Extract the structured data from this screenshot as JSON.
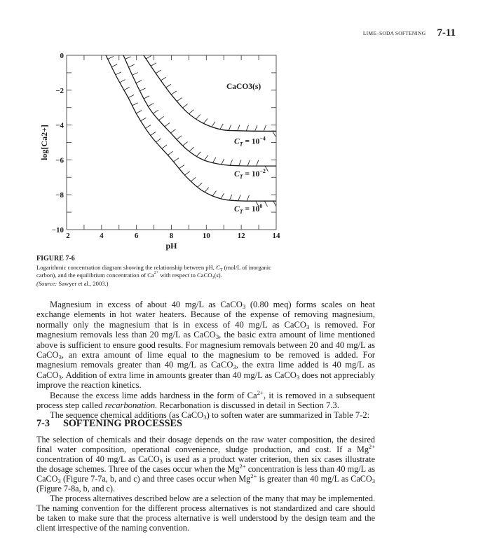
{
  "header": {
    "running_title": "LIME–SODA SOFTENING",
    "page_number": "7-11"
  },
  "chart_data": {
    "type": "line",
    "xlabel": "pH",
    "ylabel": "log[Ca2+]",
    "xlim": [
      2,
      14
    ],
    "ylim": [
      -10,
      0
    ],
    "xticks": [
      "2",
      "4",
      "6",
      "8",
      "10",
      "12",
      "14"
    ],
    "yticks": [
      "0",
      "−2",
      "−4",
      "−6",
      "−8",
      "−10"
    ],
    "region_label": "CaCO3(s)",
    "grid": false,
    "series": [
      {
        "name": "CT = 10^-4",
        "label_base": "C",
        "label_sub": "T",
        "label_mid": " = 10",
        "label_exp": "−4",
        "x": [
          6.41,
          7.15,
          7.95,
          8.88,
          9.82,
          10.9,
          11.96,
          13.0,
          14.0
        ],
        "y": [
          0,
          -1.1,
          -2.2,
          -3.25,
          -3.9,
          -4.27,
          -4.33,
          -4.35,
          -4.35
        ]
      },
      {
        "name": "CT = 10^-2",
        "label_base": "C",
        "label_sub": "T",
        "label_mid": " = 10",
        "label_exp": "−2",
        "x": [
          5.25,
          5.81,
          6.48,
          7.0,
          7.95,
          8.88,
          9.82,
          10.9,
          11.96,
          13.0,
          14.0
        ],
        "y": [
          0,
          -1.25,
          -2.6,
          -3.4,
          -4.45,
          -5.4,
          -6.0,
          -6.27,
          -6.34,
          -6.35,
          -6.35
        ]
      },
      {
        "name": "CT = 10^0",
        "label_base": "C",
        "label_sub": "T",
        "label_mid": " = 10",
        "label_exp": "0",
        "x": [
          4.25,
          4.87,
          5.54,
          6.08,
          6.88,
          7.95,
          8.88,
          9.82,
          10.9,
          11.96,
          13.0,
          14.0
        ],
        "y": [
          0,
          -1.25,
          -2.45,
          -3.5,
          -4.7,
          -5.9,
          -7.0,
          -7.8,
          -8.25,
          -8.35,
          -8.36,
          -8.36
        ]
      }
    ],
    "colors": {
      "line": "#1a1a1a"
    }
  },
  "caption": {
    "figure_label": "FIGURE 7-6",
    "segments": [
      {
        "t": "Logarithmic concentration diagram showing the relationship between pH, "
      },
      {
        "t": "C",
        "i": true
      },
      {
        "t": "T",
        "sub": true
      },
      {
        "t": " (mol/L of inorganic carbon), and the equilibrium concentration of Ca"
      },
      {
        "t": "2+",
        "sup": true
      },
      {
        "t": " with respect to CaCO"
      },
      {
        "t": "3",
        "sub": true
      },
      {
        "t": "("
      },
      {
        "t": "s",
        "i": true
      },
      {
        "t": ")."
      },
      {
        "br": true
      },
      {
        "t": "(Source:",
        "i": true
      },
      {
        "t": " Sawyer et al., 2003.)"
      }
    ]
  },
  "paragraphs1": [
    {
      "indent": true,
      "segments": [
        {
          "t": "Magnesium in excess of about 40 mg/L as CaCO"
        },
        {
          "t": "3",
          "sub": true
        },
        {
          "t": " (0.80 meq) forms scales on heat exchange elements in hot water heaters. Because of the expense of removing magnesium, normally only the magnesium that is in excess of 40 mg/L as CaCO"
        },
        {
          "t": "3",
          "sub": true
        },
        {
          "t": " is removed. For magnesium removals less than 20 mg/L as CaCO"
        },
        {
          "t": "3",
          "sub": true
        },
        {
          "t": ", the basic extra amount of lime mentioned above is sufficient to ensure good results. For magnesium removals between 20 and 40 mg/L as CaCO"
        },
        {
          "t": "3",
          "sub": true
        },
        {
          "t": ", an extra amount of lime equal to the magnesium to be removed is added. For magnesium removals greater than 40 mg/L as CaCO"
        },
        {
          "t": "3",
          "sub": true
        },
        {
          "t": ", the extra lime added is 40 mg/L as CaCO"
        },
        {
          "t": "3",
          "sub": true
        },
        {
          "t": ". Addition of extra lime in amounts greater than 40 mg/L as CaCO"
        },
        {
          "t": "3",
          "sub": true
        },
        {
          "t": " does not appreciably improve the reaction kinetics."
        }
      ]
    },
    {
      "indent": true,
      "segments": [
        {
          "t": "Because the excess lime adds hardness in the form of Ca"
        },
        {
          "t": "2+",
          "sup": true
        },
        {
          "t": ", it is removed in a subsequent process step called "
        },
        {
          "t": "recarbonation.",
          "i": true
        },
        {
          "t": " Recarbonation is discussed in detail in Section 7.3."
        }
      ]
    },
    {
      "indent": true,
      "segments": [
        {
          "t": "The sequence chemical additions (as CaCO"
        },
        {
          "t": "3",
          "sub": true
        },
        {
          "t": ") to soften water are summarized in Table 7-2:"
        }
      ]
    }
  ],
  "section": {
    "number": "7-3",
    "title": "SOFTENING PROCESSES"
  },
  "paragraphs2": [
    {
      "indent": false,
      "segments": [
        {
          "t": "The selection of chemicals and their dosage depends on the raw water composition, the desired final water composition, operational convenience, sludge production, and cost. If a Mg"
        },
        {
          "t": "2+",
          "sup": true
        },
        {
          "t": " concentration of 40 mg/L as CaCO"
        },
        {
          "t": "3",
          "sub": true
        },
        {
          "t": " is used as a product water criterion, then six cases illustrate the dosage schemes. Three of the cases occur when the Mg"
        },
        {
          "t": "2+",
          "sup": true
        },
        {
          "t": " concentration is less than 40 mg/L as CaCO"
        },
        {
          "t": "3",
          "sub": true
        },
        {
          "t": " (Figure 7-7a, b, and c) and three cases occur when Mg"
        },
        {
          "t": "2+",
          "sup": true
        },
        {
          "t": " is greater than 40 mg/L as CaCO"
        },
        {
          "t": "3",
          "sub": true
        },
        {
          "t": " (Figure 7-8a, b, and c)."
        }
      ]
    },
    {
      "indent": true,
      "segments": [
        {
          "t": "The process alternatives described below are a selection of the many that may be implemented. The naming convention for the different process alternatives is not standardized and care should be taken to make sure that the process alternative is well understood by the design team and the client irrespective of the naming convention."
        }
      ]
    }
  ]
}
